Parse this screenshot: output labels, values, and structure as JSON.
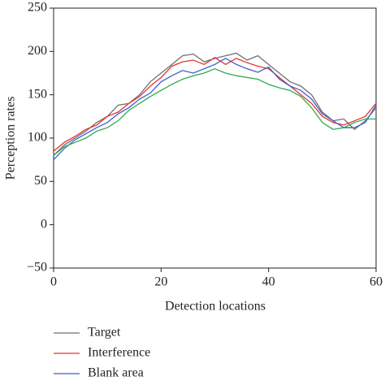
{
  "chart_data": {
    "type": "line",
    "xlabel": "Detection locations",
    "ylabel": "Perception rates",
    "x": [
      0,
      2,
      4,
      6,
      8,
      10,
      12,
      14,
      16,
      18,
      20,
      22,
      24,
      26,
      28,
      30,
      32,
      34,
      36,
      38,
      40,
      42,
      44,
      46,
      48,
      50,
      52,
      54,
      56,
      58,
      60
    ],
    "series": [
      {
        "name": "Target",
        "color": "#707070",
        "values": [
          80,
          92,
          100,
          108,
          118,
          125,
          138,
          140,
          150,
          165,
          175,
          185,
          195,
          197,
          188,
          192,
          195,
          198,
          190,
          195,
          185,
          175,
          165,
          160,
          150,
          130,
          120,
          122,
          110,
          120,
          135
        ]
      },
      {
        "name": "Interference",
        "color": "#e8332c",
        "values": [
          85,
          95,
          102,
          110,
          115,
          125,
          130,
          140,
          148,
          160,
          170,
          183,
          188,
          190,
          185,
          193,
          185,
          192,
          187,
          183,
          180,
          170,
          160,
          150,
          140,
          125,
          118,
          115,
          120,
          125,
          140
        ]
      },
      {
        "name": "Blank area",
        "color": "#3a5fcd",
        "values": [
          75,
          88,
          98,
          105,
          112,
          118,
          128,
          135,
          145,
          152,
          165,
          172,
          178,
          175,
          180,
          185,
          192,
          185,
          180,
          176,
          182,
          168,
          160,
          155,
          145,
          128,
          120,
          112,
          112,
          118,
          138
        ]
      },
      {
        "color": "#2eaa4e",
        "values": [
          80,
          90,
          95,
          100,
          108,
          112,
          120,
          132,
          140,
          148,
          155,
          162,
          168,
          172,
          175,
          180,
          175,
          172,
          170,
          168,
          162,
          158,
          155,
          148,
          135,
          118,
          110,
          112,
          118,
          122,
          122
        ]
      }
    ],
    "xlim": [
      0,
      60
    ],
    "xticks": [
      0,
      20,
      40,
      60
    ],
    "ylim": [
      -50,
      250
    ],
    "yticks": [
      {
        "value": -50,
        "label": "−50"
      },
      0,
      50,
      100,
      150,
      200,
      250
    ]
  }
}
